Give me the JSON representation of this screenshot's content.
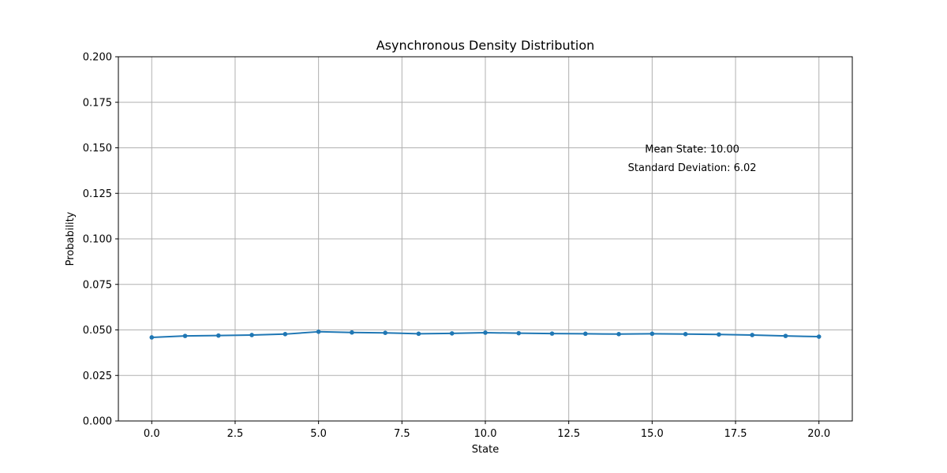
{
  "chart_data": {
    "type": "line",
    "title": "Asynchronous Density Distribution",
    "xlabel": "State",
    "ylabel": "Probability",
    "xlim": [
      -1.0,
      21.0
    ],
    "ylim": [
      0.0,
      0.2
    ],
    "xticks": [
      "0.0",
      "2.5",
      "5.0",
      "7.5",
      "10.0",
      "12.5",
      "15.0",
      "17.5",
      "20.0"
    ],
    "yticks": [
      "0.000",
      "0.025",
      "0.050",
      "0.075",
      "0.100",
      "0.125",
      "0.150",
      "0.175",
      "0.200"
    ],
    "grid": true,
    "series": [
      {
        "color": "#1f77b4",
        "marker": "circle",
        "x": [
          0,
          1,
          2,
          3,
          4,
          5,
          6,
          7,
          8,
          9,
          10,
          11,
          12,
          13,
          14,
          15,
          16,
          17,
          18,
          19,
          20
        ],
        "values": [
          0.0459,
          0.0467,
          0.0469,
          0.0472,
          0.0477,
          0.049,
          0.0486,
          0.0484,
          0.0479,
          0.0481,
          0.0485,
          0.0482,
          0.048,
          0.0479,
          0.0477,
          0.0479,
          0.0477,
          0.0475,
          0.0472,
          0.0467,
          0.0463
        ]
      }
    ],
    "annotations": [
      {
        "text": "Mean State: 10.00",
        "x": 16.2,
        "y": 0.1475
      },
      {
        "text": "Standard Deviation: 6.02",
        "x": 16.2,
        "y": 0.1372
      }
    ]
  }
}
